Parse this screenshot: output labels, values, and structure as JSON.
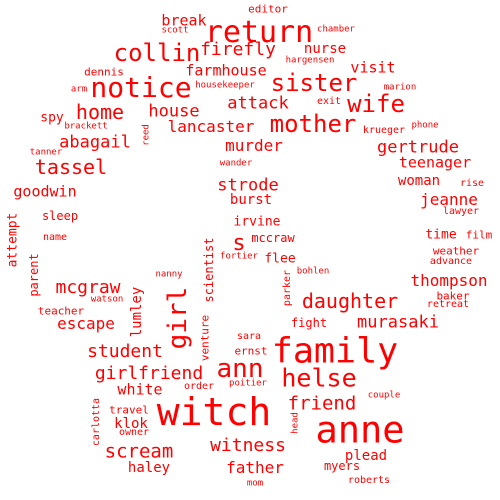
{
  "color": "#ff0000",
  "words": [
    "editor",
    "break",
    "scott",
    "chamber",
    "return",
    "collin",
    "firefly",
    "nurse",
    "hargensen",
    "notice",
    "sister",
    "visit",
    "dennis",
    "farmhouse",
    "arm",
    "housekeeper",
    "marion",
    "home",
    "house",
    "attack",
    "wife",
    "exit",
    "spy",
    "lancaster",
    "mother",
    "brackett",
    "reed",
    "krueger",
    "phone",
    "abagail",
    "murder",
    "gertrude",
    "tanner",
    "tassel",
    "teenager",
    "wander",
    "woman",
    "rise",
    "goodwin",
    "strode",
    "burst",
    "jeanne",
    "attempt",
    "sleep",
    "lawyer",
    "irvine",
    "name",
    "s",
    "mccraw",
    "time",
    "film",
    "parent",
    "scientist",
    "fortier",
    "flee",
    "weather",
    "advance",
    "nanny",
    "bohlen",
    "thompson",
    "mcgraw",
    "girl",
    "parker",
    "baker",
    "watson",
    "daughter",
    "retreat",
    "teacher",
    "lumley",
    "escape",
    "fight",
    "murasaki",
    "venture",
    "student",
    "sara",
    "ernst",
    "family",
    "ann",
    "girlfriend",
    "helse",
    "white",
    "order",
    "poitier",
    "couple",
    "witch",
    "carlotta",
    "friend",
    "travel",
    "klok",
    "anne",
    "owner",
    "head",
    "scream",
    "witness",
    "plead",
    "haley",
    "father",
    "myers",
    "mom",
    "roberts"
  ]
}
